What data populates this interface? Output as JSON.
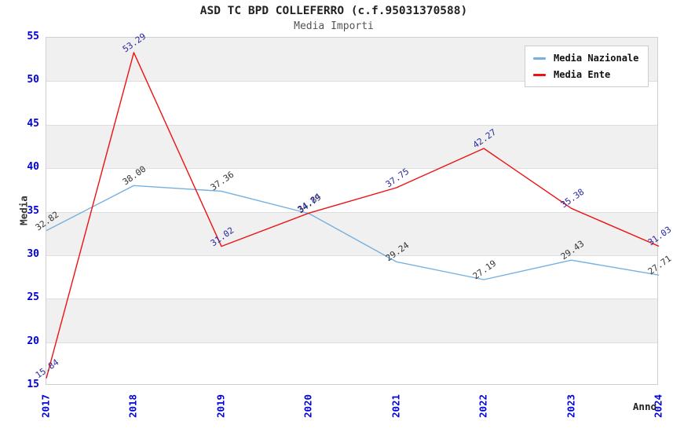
{
  "chart_data": {
    "type": "line",
    "title": "ASD TC BPD COLLEFERRO (c.f.95031370588)",
    "subtitle": "Media Importi",
    "xlabel": "Anno",
    "ylabel": "Media",
    "x": [
      "2017",
      "2018",
      "2019",
      "2020",
      "2021",
      "2022",
      "2023",
      "2024"
    ],
    "series": [
      {
        "name": "Media Nazionale",
        "color": "#74b0e0",
        "label_color": "#333333",
        "values": [
          32.82,
          38.0,
          37.36,
          34.79,
          29.24,
          27.19,
          29.43,
          27.71
        ],
        "labels": [
          "32.82",
          "38.00",
          "37.36",
          "34.79",
          "29.24",
          "27.19",
          "29.43",
          "27.71"
        ]
      },
      {
        "name": "Media Ente",
        "color": "#ee1111",
        "label_color": "#2828a0",
        "values": [
          15.84,
          53.29,
          31.02,
          34.84,
          37.75,
          42.27,
          35.38,
          31.03
        ],
        "labels": [
          "15.84",
          "53.29",
          "31.02",
          "34.84",
          "37.75",
          "42.27",
          "35.38",
          "31.03"
        ]
      }
    ],
    "ylim": [
      15,
      55
    ],
    "ytick_step": 5,
    "grid": "horizontal-bands",
    "band_color": "#f0f0f0",
    "tick_color": "#0000dd",
    "legend_position": "top-right"
  },
  "legend": {
    "items": [
      {
        "label": "Media Nazionale",
        "color": "#74b0e0"
      },
      {
        "label": "Media Ente",
        "color": "#ee1111"
      }
    ]
  }
}
